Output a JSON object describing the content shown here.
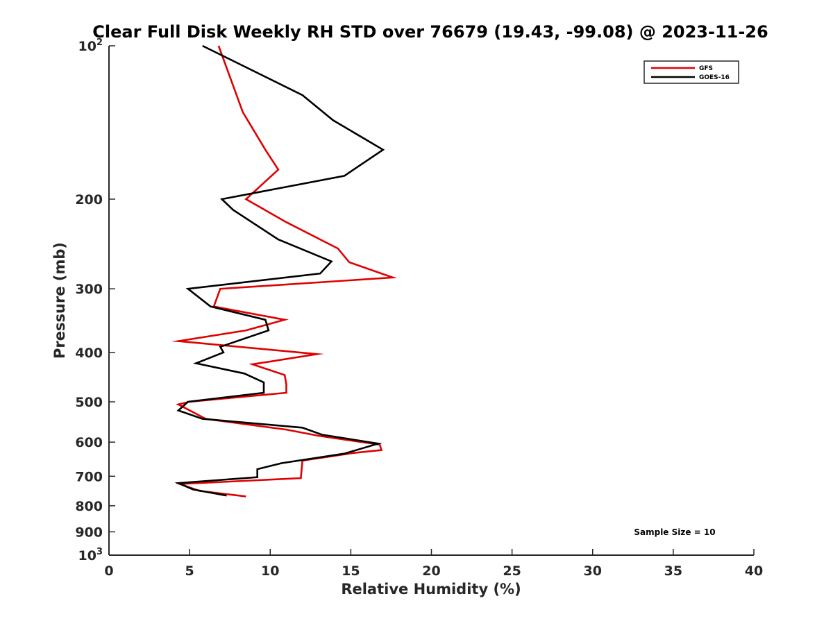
{
  "chart_data": {
    "type": "line",
    "title": "Clear Full Disk Weekly RH STD over 76679 (19.43, -99.08) @ 2023-11-26",
    "xlabel": "Relative Humidity (%)",
    "ylabel": "Pressure (mb)",
    "xlim": [
      0,
      40
    ],
    "ylim": [
      100,
      1000
    ],
    "y_scale": "log",
    "y_reversed": true,
    "grid": false,
    "legend_position": "top-right",
    "x_ticks": [
      0,
      5,
      10,
      15,
      20,
      25,
      30,
      35,
      40
    ],
    "x_tick_labels": [
      "0",
      "5",
      "10",
      "15",
      "20",
      "25",
      "30",
      "35",
      "40"
    ],
    "y_ticks": [
      {
        "value": 100,
        "base": "10",
        "exp": "2"
      },
      {
        "value": 200,
        "label": "200"
      },
      {
        "value": 300,
        "label": "300"
      },
      {
        "value": 400,
        "label": "400"
      },
      {
        "value": 500,
        "label": "500"
      },
      {
        "value": 600,
        "label": "600"
      },
      {
        "value": 700,
        "label": "700"
      },
      {
        "value": 800,
        "label": "800"
      },
      {
        "value": 900,
        "label": "900"
      },
      {
        "value": 1000,
        "base": "10",
        "exp": "3"
      }
    ],
    "series": [
      {
        "name": "GFS",
        "color": "#e00000",
        "points": [
          [
            6.8,
            100
          ],
          [
            8.3,
            135
          ],
          [
            9.7,
            160
          ],
          [
            10.5,
            175
          ],
          [
            8.5,
            200
          ],
          [
            11.0,
            222
          ],
          [
            14.2,
            250
          ],
          [
            14.9,
            266
          ],
          [
            17.6,
            285
          ],
          [
            6.9,
            300
          ],
          [
            6.5,
            325
          ],
          [
            10.9,
            345
          ],
          [
            8.5,
            362
          ],
          [
            4.3,
            380
          ],
          [
            12.9,
            403
          ],
          [
            8.9,
            422
          ],
          [
            10.9,
            443
          ],
          [
            11.0,
            463
          ],
          [
            11.0,
            480
          ],
          [
            5.0,
            500
          ],
          [
            4.3,
            506
          ],
          [
            6.0,
            540
          ],
          [
            11.0,
            567
          ],
          [
            13.0,
            583
          ],
          [
            16.8,
            607
          ],
          [
            16.9,
            622
          ],
          [
            15.2,
            630
          ],
          [
            12.0,
            652
          ],
          [
            11.9,
            706
          ],
          [
            4.4,
            725
          ],
          [
            5.6,
            748
          ],
          [
            8.5,
            767
          ]
        ]
      },
      {
        "name": "GOES-16",
        "color": "#000000",
        "points": [
          [
            5.8,
            100
          ],
          [
            12.0,
            125
          ],
          [
            13.9,
            140
          ],
          [
            17.0,
            160
          ],
          [
            14.6,
            180
          ],
          [
            7.0,
            200
          ],
          [
            7.7,
            210
          ],
          [
            10.5,
            240
          ],
          [
            13.8,
            265
          ],
          [
            13.1,
            280
          ],
          [
            4.9,
            300
          ],
          [
            6.3,
            325
          ],
          [
            9.7,
            345
          ],
          [
            9.9,
            362
          ],
          [
            6.9,
            390
          ],
          [
            7.1,
            400
          ],
          [
            5.4,
            420
          ],
          [
            8.4,
            440
          ],
          [
            9.6,
            458
          ],
          [
            9.6,
            480
          ],
          [
            4.9,
            500
          ],
          [
            4.3,
            520
          ],
          [
            5.8,
            540
          ],
          [
            12.0,
            562
          ],
          [
            13.2,
            580
          ],
          [
            16.7,
            604
          ],
          [
            14.6,
            632
          ],
          [
            10.7,
            660
          ],
          [
            9.2,
            678
          ],
          [
            9.2,
            703
          ],
          [
            4.3,
            722
          ],
          [
            5.2,
            743
          ],
          [
            7.3,
            764
          ]
        ]
      }
    ],
    "annotations": [
      {
        "text": "Sample Size = 10",
        "position": "bottom-right"
      }
    ]
  }
}
